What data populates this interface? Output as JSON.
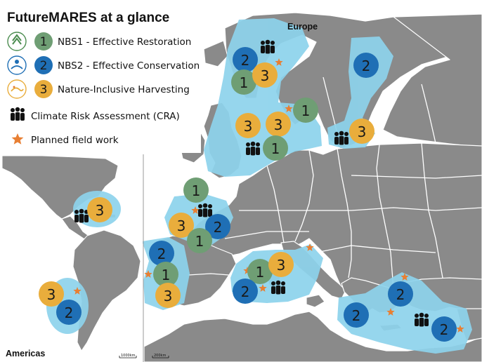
{
  "title": "FutureMARES at a glance",
  "colors": {
    "land": "#8a8a8a",
    "sea": "#ffffff",
    "study_area": "#8dd3ec",
    "nbs1": "#6f9e74",
    "nbs2": "#1f6fb5",
    "harvest": "#e9ad3c",
    "cra": "#111111",
    "fieldwork": "#e87f33",
    "border": "#ffffff"
  },
  "legend": [
    {
      "id": "nbs1",
      "icon": "restoration-icon",
      "number": "1",
      "label": "NBS1 - Effective Restoration"
    },
    {
      "id": "nbs2",
      "icon": "conservation-icon",
      "number": "2",
      "label": "NBS2 - Effective Conservation"
    },
    {
      "id": "harvest",
      "icon": "harvesting-icon",
      "number": "3",
      "label": "Nature-Inclusive Harvesting"
    },
    {
      "id": "cra",
      "icon": "people-icon",
      "label": "Climate Risk Assessment (CRA)"
    },
    {
      "id": "field",
      "icon": "star-icon",
      "label": "Planned field work"
    }
  ],
  "regions": {
    "europe": "Europe",
    "americas": "Americas"
  },
  "scales": {
    "americas": "1000km",
    "europe": "200km"
  },
  "sites": [
    {
      "type": "nbs2",
      "number": "2"
    },
    {
      "type": "nbs1",
      "number": "1"
    },
    {
      "type": "harvest",
      "number": "3"
    },
    {
      "type": "nbs2",
      "number": "2"
    },
    {
      "type": "nbs1",
      "number": "1"
    },
    {
      "type": "harvest",
      "number": "3"
    },
    {
      "type": "harvest",
      "number": "3"
    },
    {
      "type": "nbs1",
      "number": "1"
    },
    {
      "type": "harvest",
      "number": "3"
    },
    {
      "type": "nbs1",
      "number": "1"
    },
    {
      "type": "harvest",
      "number": "3"
    },
    {
      "type": "nbs2",
      "number": "2"
    },
    {
      "type": "nbs1",
      "number": "1"
    },
    {
      "type": "nbs2",
      "number": "2"
    },
    {
      "type": "nbs1",
      "number": "1"
    },
    {
      "type": "harvest",
      "number": "3"
    },
    {
      "type": "nbs1",
      "number": "1"
    },
    {
      "type": "harvest",
      "number": "3"
    },
    {
      "type": "nbs2",
      "number": "2"
    },
    {
      "type": "nbs2",
      "number": "2"
    },
    {
      "type": "nbs2",
      "number": "2"
    },
    {
      "type": "nbs2",
      "number": "2"
    },
    {
      "type": "harvest",
      "number": "3"
    },
    {
      "type": "harvest",
      "number": "3"
    },
    {
      "type": "nbs2",
      "number": "2"
    }
  ]
}
